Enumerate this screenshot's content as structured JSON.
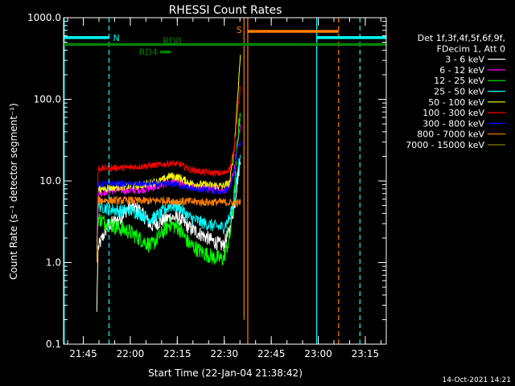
{
  "chart_data": {
    "type": "line",
    "title": "RHESSI Count Rates",
    "xlabel": "Start Time (22-Jan-04 21:38:42)",
    "ylabel": "Count Rate (s⁻¹ detector segment⁻¹)",
    "yscale": "log",
    "ylim": [
      0.1,
      1000
    ],
    "xlim_minutes_from_start": [
      0,
      103
    ],
    "x_ticks": [
      {
        "label": "21:45",
        "minute": 6.3
      },
      {
        "label": "22:00",
        "minute": 21.3
      },
      {
        "label": "22:15",
        "minute": 36.3
      },
      {
        "label": "22:30",
        "minute": 51.3
      },
      {
        "label": "22:45",
        "minute": 66.3
      },
      {
        "label": "23:00",
        "minute": 81.3
      },
      {
        "label": "23:15",
        "minute": 96.3
      }
    ],
    "y_ticks": [
      {
        "label": "0.1",
        "value": 0.1
      },
      {
        "label": "1.0",
        "value": 1
      },
      {
        "label": "10.0",
        "value": 10
      },
      {
        "label": "100.0",
        "value": 100
      },
      {
        "label": "1000.0",
        "value": 1000
      }
    ],
    "legend_header": [
      "Det 1f,3f,4f,5f,6f,9f,",
      "FDecim 1, Att 0"
    ],
    "legend_position": "right",
    "series": [
      {
        "name": "3 - 6 keV",
        "color": "#ffffff",
        "points": [
          [
            10.6,
            0.25
          ],
          [
            11,
            1.5
          ],
          [
            14,
            2.8
          ],
          [
            18,
            3.5
          ],
          [
            21,
            4.8
          ],
          [
            24,
            4.5
          ],
          [
            28,
            2.8
          ],
          [
            31,
            3.2
          ],
          [
            34,
            3.6
          ],
          [
            37,
            3.5
          ],
          [
            40,
            2.7
          ],
          [
            44,
            2.2
          ],
          [
            48,
            1.8
          ],
          [
            51,
            1.6
          ],
          [
            53,
            2.5
          ],
          [
            54.5,
            5
          ],
          [
            55.5,
            10
          ],
          [
            56.5,
            20
          ]
        ]
      },
      {
        "name": "6 - 12 keV",
        "color": "#ff00ff",
        "points": [
          [
            10.6,
            1.8
          ],
          [
            11,
            7
          ],
          [
            14,
            7.5
          ],
          [
            18,
            7.8
          ],
          [
            21,
            7.6
          ],
          [
            24,
            7.8
          ],
          [
            28,
            8.2
          ],
          [
            31,
            8.8
          ],
          [
            34,
            9.8
          ],
          [
            37,
            9.6
          ],
          [
            40,
            8.6
          ],
          [
            44,
            8.2
          ],
          [
            48,
            7.9
          ],
          [
            51,
            7.7
          ],
          [
            53,
            8.6
          ],
          [
            54.5,
            14
          ],
          [
            55.5,
            28
          ],
          [
            56.5,
            50
          ]
        ]
      },
      {
        "name": "12 - 25 keV",
        "color": "#00ff00",
        "points": [
          [
            10.6,
            1.2
          ],
          [
            11,
            3.5
          ],
          [
            14,
            3.0
          ],
          [
            18,
            2.6
          ],
          [
            21,
            2.4
          ],
          [
            24,
            2.0
          ],
          [
            28,
            1.6
          ],
          [
            31,
            2.2
          ],
          [
            34,
            3.0
          ],
          [
            37,
            2.6
          ],
          [
            40,
            1.7
          ],
          [
            44,
            1.35
          ],
          [
            48,
            1.15
          ],
          [
            51,
            1.1
          ],
          [
            53,
            2.0
          ],
          [
            54.5,
            7
          ],
          [
            55.5,
            30
          ],
          [
            56.5,
            80
          ]
        ]
      },
      {
        "name": "25 - 50 keV",
        "color": "#00ffff",
        "points": [
          [
            10.6,
            1.5
          ],
          [
            11,
            5
          ],
          [
            14,
            4.6
          ],
          [
            18,
            4.3
          ],
          [
            21,
            4.4
          ],
          [
            24,
            4.0
          ],
          [
            28,
            3.4
          ],
          [
            31,
            4.0
          ],
          [
            34,
            5.0
          ],
          [
            37,
            4.8
          ],
          [
            40,
            3.6
          ],
          [
            44,
            3.1
          ],
          [
            48,
            2.8
          ],
          [
            51,
            2.7
          ],
          [
            53,
            3.5
          ],
          [
            54.5,
            6
          ],
          [
            55.5,
            12
          ],
          [
            56.5,
            25
          ]
        ]
      },
      {
        "name": "50 - 100 keV",
        "color": "#ffff00",
        "points": [
          [
            10.6,
            2
          ],
          [
            11,
            8
          ],
          [
            14,
            8.2
          ],
          [
            18,
            8.5
          ],
          [
            21,
            8.6
          ],
          [
            24,
            8.8
          ],
          [
            28,
            9.5
          ],
          [
            31,
            10
          ],
          [
            34,
            11.5
          ],
          [
            37,
            11
          ],
          [
            40,
            9.5
          ],
          [
            44,
            9
          ],
          [
            48,
            8.8
          ],
          [
            51,
            8.6
          ],
          [
            53,
            9.5
          ],
          [
            54.5,
            25
          ],
          [
            55.5,
            100
          ],
          [
            56.5,
            380
          ]
        ]
      },
      {
        "name": "100 - 300 keV",
        "color": "#ff0000",
        "points": [
          [
            10.6,
            2.5
          ],
          [
            11,
            14
          ],
          [
            14,
            14.5
          ],
          [
            18,
            14.5
          ],
          [
            21,
            14.6
          ],
          [
            24,
            15
          ],
          [
            28,
            15.5
          ],
          [
            31,
            15.8
          ],
          [
            34,
            16.5
          ],
          [
            37,
            16
          ],
          [
            40,
            14
          ],
          [
            44,
            13
          ],
          [
            48,
            12.5
          ],
          [
            51,
            12.3
          ],
          [
            53,
            14
          ],
          [
            54.5,
            25
          ],
          [
            55.5,
            70
          ],
          [
            56.5,
            150
          ]
        ]
      },
      {
        "name": "300 - 800 keV",
        "color": "#0000ff",
        "points": [
          [
            10.6,
            2
          ],
          [
            11,
            9
          ],
          [
            14,
            9.2
          ],
          [
            18,
            9.3
          ],
          [
            21,
            9.0
          ],
          [
            24,
            9.1
          ],
          [
            28,
            9.3
          ],
          [
            31,
            9.0
          ],
          [
            34,
            9.2
          ],
          [
            37,
            8.9
          ],
          [
            40,
            8.2
          ],
          [
            44,
            7.8
          ],
          [
            48,
            7.5
          ],
          [
            51,
            7.3
          ],
          [
            53,
            8.2
          ],
          [
            54.5,
            12
          ],
          [
            55.5,
            25
          ],
          [
            56.5,
            30
          ]
        ]
      },
      {
        "name": "800 - 7000 keV",
        "color": "#ff8000",
        "points": [
          [
            10.6,
            1
          ],
          [
            11,
            5.8
          ],
          [
            14,
            5.8
          ],
          [
            18,
            5.7
          ],
          [
            21,
            5.8
          ],
          [
            24,
            5.7
          ],
          [
            28,
            5.7
          ],
          [
            31,
            5.8
          ],
          [
            34,
            5.7
          ],
          [
            37,
            5.6
          ],
          [
            40,
            5.6
          ],
          [
            44,
            5.5
          ],
          [
            48,
            5.5
          ],
          [
            51,
            5.5
          ],
          [
            53,
            5.4
          ],
          [
            54.5,
            5.4
          ],
          [
            55.5,
            5.3
          ],
          [
            56.5,
            5.5
          ]
        ]
      },
      {
        "name": "7000 - 15000 keV",
        "color": "#808000",
        "points": []
      }
    ],
    "attenuator_bars": [
      {
        "label": "N",
        "color": "#00ffff",
        "x_start": 0,
        "x_end": 14.5,
        "value": 570
      },
      {
        "label": "",
        "color": "#00ffff",
        "x_start": 80.8,
        "x_end": 103,
        "value": 570
      },
      {
        "label": "S",
        "color": "#ff8000",
        "x_start": 58.8,
        "x_end": 87.8,
        "value": 680
      },
      {
        "label": "RD0",
        "color": "#008000",
        "x_start": 0,
        "x_end": 103,
        "value": 470
      },
      {
        "label": "RD4",
        "color": "#008000",
        "x_start": 30.8,
        "x_end": 34.3,
        "value": 380
      }
    ],
    "vertical_lines": [
      {
        "color": "#00ffff",
        "x": 0.2,
        "style": "solid"
      },
      {
        "color": "#00ffff",
        "x": 14.5,
        "style": "dashed"
      },
      {
        "color": "#ff8000",
        "x": 57.6,
        "style": "solid",
        "bottom": 0.2
      },
      {
        "color": "#ff8000",
        "x": 58.8,
        "style": "solid"
      },
      {
        "color": "#00ffff",
        "x": 80.8,
        "style": "solid"
      },
      {
        "color": "#ff8000",
        "x": 87.8,
        "style": "dashed"
      },
      {
        "color": "#00ffff",
        "x": 94.6,
        "style": "dashed"
      }
    ],
    "grid": false,
    "timestamp": "14-Oct-2021 14:21"
  }
}
